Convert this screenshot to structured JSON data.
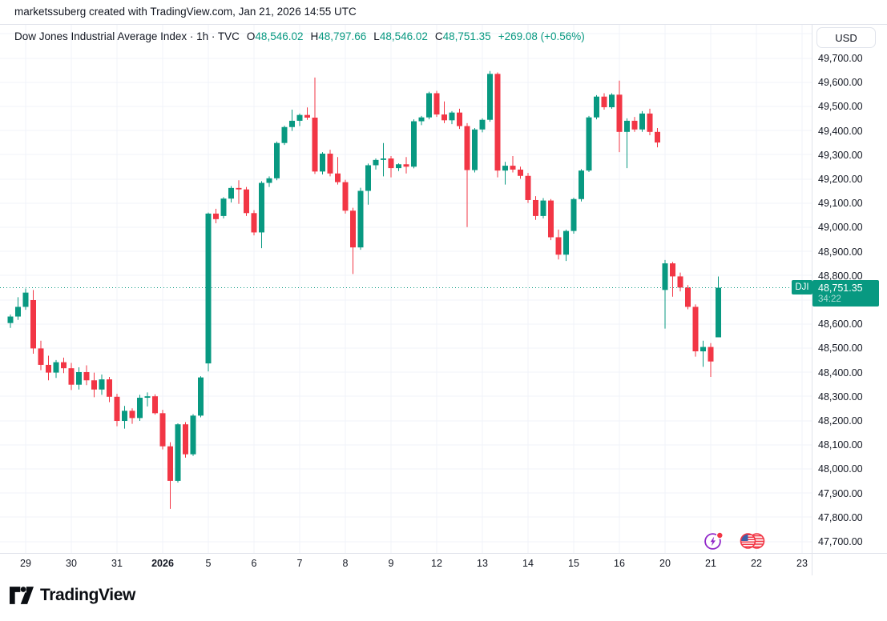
{
  "attribution": "marketssuberg created with TradingView.com, Jan 21, 2026 14:55 UTC",
  "header": {
    "title": "Dow Jones Industrial Average Index · 1h · TVC",
    "ohlc": {
      "o_label": "O",
      "o": "48,546.02",
      "h_label": "H",
      "h": "48,797.66",
      "l_label": "L",
      "l": "48,546.02",
      "c_label": "C",
      "c": "48,751.35",
      "change": "+269.08 (+0.56%)"
    }
  },
  "price_axis": {
    "currency_button": "USD",
    "labeled_ticks": [
      49700,
      49600,
      49500,
      49400,
      49300,
      49200,
      49100,
      49000,
      48900,
      48800,
      48600,
      48500,
      48400,
      48300,
      48200,
      48100,
      48000,
      47900,
      47800,
      47700
    ]
  },
  "price_line": {
    "symbol_badge": "DJI",
    "price_text": "48,751.35",
    "countdown": "34:22",
    "value": 48751.35
  },
  "colors": {
    "up": "#089981",
    "down": "#F23645",
    "grid": "#F0F3FA",
    "text": "#131722",
    "border": "#E0E3EB",
    "event_purple": "#9127C9"
  },
  "logo": {
    "text": "TradingView"
  },
  "events": [
    {
      "name": "economic-event-lightning"
    },
    {
      "name": "economic-event-us-flag"
    }
  ],
  "chart_data": {
    "type": "candlestick",
    "title": "Dow Jones Industrial Average Index",
    "interval": "1h",
    "exchange": "TVC",
    "currency": "USD",
    "ohlc_order": [
      "open",
      "high",
      "low",
      "close"
    ],
    "current_price": 48751.35,
    "visible_price_range": [
      47654,
      49839
    ],
    "price_gridlines": [
      47700,
      47800,
      47900,
      48000,
      48100,
      48200,
      48300,
      48400,
      48500,
      48600,
      48700,
      48800,
      48900,
      49000,
      49100,
      49200,
      49300,
      49400,
      49500,
      49600,
      49700,
      49800
    ],
    "time_ticks": [
      {
        "label": "29",
        "slot": 2
      },
      {
        "label": "30",
        "slot": 8
      },
      {
        "label": "31",
        "slot": 14
      },
      {
        "label": "2026",
        "slot": 20,
        "bold": true
      },
      {
        "label": "5",
        "slot": 26
      },
      {
        "label": "6",
        "slot": 32
      },
      {
        "label": "7",
        "slot": 38
      },
      {
        "label": "8",
        "slot": 44
      },
      {
        "label": "9",
        "slot": 50
      },
      {
        "label": "12",
        "slot": 56
      },
      {
        "label": "13",
        "slot": 62
      },
      {
        "label": "14",
        "slot": 68
      },
      {
        "label": "15",
        "slot": 74
      },
      {
        "label": "16",
        "slot": 80
      },
      {
        "label": "20",
        "slot": 86
      },
      {
        "label": "21",
        "slot": 92
      },
      {
        "label": "22",
        "slot": 98
      },
      {
        "label": "23",
        "slot": 104
      }
    ],
    "candles": [
      [
        48605,
        48640,
        48585,
        48632
      ],
      [
        48632,
        48712,
        48618,
        48672
      ],
      [
        48672,
        48748,
        48660,
        48731
      ],
      [
        48700,
        48742,
        48478,
        48500
      ],
      [
        48500,
        48532,
        48410,
        48432
      ],
      [
        48432,
        48470,
        48368,
        48400
      ],
      [
        48400,
        48452,
        48378,
        48443
      ],
      [
        48443,
        48462,
        48398,
        48418
      ],
      [
        48418,
        48440,
        48328,
        48350
      ],
      [
        48350,
        48422,
        48330,
        48402
      ],
      [
        48402,
        48430,
        48348,
        48368
      ],
      [
        48368,
        48400,
        48298,
        48330
      ],
      [
        48330,
        48392,
        48308,
        48372
      ],
      [
        48372,
        48382,
        48278,
        48300
      ],
      [
        48300,
        48312,
        48178,
        48200
      ],
      [
        48200,
        48262,
        48168,
        48242
      ],
      [
        48242,
        48252,
        48188,
        48212
      ],
      [
        48212,
        48308,
        48200,
        48296
      ],
      [
        48296,
        48318,
        48260,
        48302
      ],
      [
        48302,
        48310,
        48226,
        48232
      ],
      [
        48232,
        48246,
        48082,
        48095
      ],
      [
        48095,
        48112,
        47836,
        47952
      ],
      [
        47952,
        48190,
        47945,
        48186
      ],
      [
        48186,
        48195,
        48048,
        48062
      ],
      [
        48062,
        48228,
        48055,
        48222
      ],
      [
        48222,
        48385,
        48215,
        48380
      ],
      [
        48438,
        49062,
        48405,
        49058
      ],
      [
        49058,
        49078,
        49018,
        49035
      ],
      [
        49048,
        49126,
        49038,
        49120
      ],
      [
        49120,
        49172,
        49104,
        49164
      ],
      [
        49164,
        49196,
        49098,
        49158
      ],
      [
        49158,
        49168,
        49048,
        49060
      ],
      [
        49060,
        49072,
        48968,
        48980
      ],
      [
        48980,
        49192,
        48915,
        49185
      ],
      [
        49185,
        49212,
        49168,
        49204
      ],
      [
        49204,
        49356,
        49196,
        49350
      ],
      [
        49350,
        49422,
        49342,
        49416
      ],
      [
        49416,
        49488,
        49400,
        49442
      ],
      [
        49442,
        49472,
        49420,
        49466
      ],
      [
        49466,
        49497,
        49446,
        49455
      ],
      [
        49455,
        49621,
        49222,
        49232
      ],
      [
        49232,
        49312,
        49220,
        49306
      ],
      [
        49306,
        49322,
        49212,
        49224
      ],
      [
        49224,
        49292,
        49178,
        49188
      ],
      [
        49188,
        49198,
        49058,
        49070
      ],
      [
        49070,
        49082,
        48808,
        48918
      ],
      [
        48918,
        49165,
        48908,
        49152
      ],
      [
        49152,
        49265,
        49095,
        49258
      ],
      [
        49258,
        49286,
        49240,
        49280
      ],
      [
        49280,
        49350,
        49212,
        49286
      ],
      [
        49286,
        49296,
        49208,
        49246
      ],
      [
        49246,
        49266,
        49234,
        49262
      ],
      [
        49262,
        49292,
        49224,
        49252
      ],
      [
        49252,
        49448,
        49245,
        49440
      ],
      [
        49440,
        49462,
        49424,
        49456
      ],
      [
        49456,
        49562,
        49448,
        49556
      ],
      [
        49556,
        49566,
        49458,
        49468
      ],
      [
        49468,
        49522,
        49432,
        49444
      ],
      [
        49444,
        49482,
        49428,
        49476
      ],
      [
        49476,
        49492,
        49408,
        49420
      ],
      [
        49420,
        49432,
        49002,
        49238
      ],
      [
        49238,
        49412,
        49228,
        49406
      ],
      [
        49406,
        49452,
        49394,
        49446
      ],
      [
        49446,
        49648,
        49438,
        49636
      ],
      [
        49636,
        49642,
        49208,
        49236
      ],
      [
        49236,
        49272,
        49178,
        49256
      ],
      [
        49256,
        49296,
        49228,
        49240
      ],
      [
        49240,
        49252,
        49202,
        49214
      ],
      [
        49214,
        49226,
        49102,
        49114
      ],
      [
        49114,
        49130,
        49032,
        49048
      ],
      [
        49048,
        49122,
        49038,
        49112
      ],
      [
        49112,
        49118,
        48948,
        48960
      ],
      [
        48960,
        48992,
        48868,
        48888
      ],
      [
        48888,
        48992,
        48862,
        48986
      ],
      [
        48986,
        49124,
        48975,
        49118
      ],
      [
        49118,
        49242,
        49108,
        49236
      ],
      [
        49236,
        49462,
        49230,
        49456
      ],
      [
        49456,
        49548,
        49448,
        49542
      ],
      [
        49542,
        49556,
        49488,
        49498
      ],
      [
        49498,
        49556,
        49492,
        49550
      ],
      [
        49550,
        49608,
        49312,
        49396
      ],
      [
        49396,
        49452,
        49246,
        49442
      ],
      [
        49442,
        49458,
        49396,
        49406
      ],
      [
        49406,
        49482,
        49396,
        49472
      ],
      [
        49472,
        49492,
        49382,
        49396
      ],
      [
        49396,
        49412,
        49332,
        49352
      ],
      [
        48742,
        48866,
        48582,
        48852
      ],
      [
        48852,
        48858,
        48714,
        48798
      ],
      [
        48798,
        48814,
        48736,
        48752
      ],
      [
        48752,
        48762,
        48662,
        48672
      ],
      [
        48672,
        48682,
        48466,
        48488
      ],
      [
        48488,
        48532,
        48424,
        48506
      ],
      [
        48506,
        48522,
        48382,
        48446
      ],
      [
        48546.02,
        48797.66,
        48546.02,
        48751.35
      ]
    ]
  }
}
